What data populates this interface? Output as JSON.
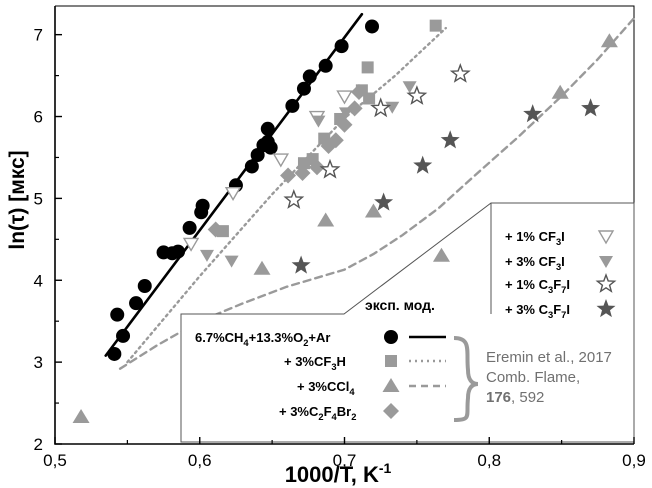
{
  "chart_data": {
    "type": "scatter",
    "title": "",
    "xlabel": "1000/T, K",
    "xlabel_sup": "-1",
    "ylabel": "ln(τ) [мкс]",
    "xlim": [
      0.5,
      0.9
    ],
    "ylim": [
      2,
      7.35
    ],
    "xticks": [
      "0,5",
      "0,6",
      "0,7",
      "0,8",
      "0,9"
    ],
    "yticks": [
      "2",
      "3",
      "4",
      "5",
      "6",
      "7"
    ],
    "grid": false,
    "legend_header": "эксп.  мод.",
    "citation": {
      "line1": "Eremin et al., 2017",
      "line2": "Comb. Flame,",
      "volume": "176",
      "pages": ", 592"
    },
    "legend_main": [
      {
        "parts": [
          [
            "6.7%CH",
            ""
          ],
          [
            "4",
            "sub"
          ],
          [
            "+13.3%O",
            ""
          ],
          [
            "2",
            "sub"
          ],
          [
            "+Ar",
            ""
          ]
        ],
        "marker": "circle",
        "line": "solid"
      },
      {
        "parts": [
          [
            "+ 3%CF",
            ""
          ],
          [
            "3",
            "sub"
          ],
          [
            "H",
            ""
          ]
        ],
        "marker": "square",
        "line": "dotted"
      },
      {
        "parts": [
          [
            "+ 3%CCl",
            ""
          ],
          [
            "4",
            "sub"
          ]
        ],
        "marker": "triangle",
        "line": "dashed"
      },
      {
        "parts": [
          [
            "+ 3%C",
            ""
          ],
          [
            "2",
            "sub"
          ],
          [
            "F",
            ""
          ],
          [
            "4",
            "sub"
          ],
          [
            "Br",
            ""
          ],
          [
            "2",
            "sub"
          ]
        ],
        "marker": "diamond",
        "line": "none"
      }
    ],
    "legend_extra": [
      {
        "parts": [
          [
            "+ 1% CF",
            ""
          ],
          [
            "3",
            "sub"
          ],
          [
            "I",
            ""
          ]
        ],
        "marker": "triangle-down-open"
      },
      {
        "parts": [
          [
            "+ 3% CF",
            ""
          ],
          [
            "3",
            "sub"
          ],
          [
            "I",
            ""
          ]
        ],
        "marker": "triangle-down"
      },
      {
        "parts": [
          [
            "+ 1% C",
            ""
          ],
          [
            "3",
            "sub"
          ],
          [
            "F",
            ""
          ],
          [
            "7",
            "sub"
          ],
          [
            "I",
            ""
          ]
        ],
        "marker": "star-open"
      },
      {
        "parts": [
          [
            "+ 3% C",
            ""
          ],
          [
            "3",
            "sub"
          ],
          [
            "F",
            ""
          ],
          [
            "7",
            "sub"
          ],
          [
            "I",
            ""
          ]
        ],
        "marker": "star"
      }
    ],
    "series": [
      {
        "name": "6.7%CH4+13.3%O2+Ar",
        "marker": "circle",
        "color": "#000000",
        "points": [
          [
            0.541,
            3.1
          ],
          [
            0.543,
            3.58
          ],
          [
            0.547,
            3.32
          ],
          [
            0.556,
            3.72
          ],
          [
            0.562,
            3.93
          ],
          [
            0.575,
            4.34
          ],
          [
            0.581,
            4.33
          ],
          [
            0.585,
            4.35
          ],
          [
            0.593,
            4.64
          ],
          [
            0.601,
            4.83
          ],
          [
            0.602,
            4.91
          ],
          [
            0.625,
            5.16
          ],
          [
            0.636,
            5.39
          ],
          [
            0.64,
            5.53
          ],
          [
            0.644,
            5.65
          ],
          [
            0.647,
            5.69
          ],
          [
            0.647,
            5.85
          ],
          [
            0.649,
            5.62
          ],
          [
            0.664,
            6.13
          ],
          [
            0.672,
            6.34
          ],
          [
            0.676,
            6.49
          ],
          [
            0.687,
            6.62
          ],
          [
            0.698,
            6.86
          ],
          [
            0.719,
            7.1
          ]
        ]
      },
      {
        "name": "+ 3%CF3H",
        "marker": "square",
        "color": "#9a9a9a",
        "points": [
          [
            0.616,
            4.6
          ],
          [
            0.672,
            5.43
          ],
          [
            0.678,
            5.48
          ],
          [
            0.686,
            5.73
          ],
          [
            0.697,
            5.97
          ],
          [
            0.712,
            6.32
          ],
          [
            0.716,
            6.6
          ],
          [
            0.717,
            6.22
          ],
          [
            0.763,
            7.11
          ]
        ]
      },
      {
        "name": "+ 3%CCl4",
        "marker": "triangle",
        "color": "#9a9a9a",
        "points": [
          [
            0.518,
            2.33
          ],
          [
            0.643,
            4.14
          ],
          [
            0.687,
            4.73
          ],
          [
            0.72,
            4.84
          ],
          [
            0.767,
            4.3
          ],
          [
            0.849,
            6.29
          ],
          [
            0.883,
            6.92
          ]
        ]
      },
      {
        "name": "+ 3%C2F4Br2",
        "marker": "diamond",
        "color": "#9a9a9a",
        "points": [
          [
            0.611,
            4.62
          ],
          [
            0.661,
            5.28
          ],
          [
            0.671,
            5.31
          ],
          [
            0.681,
            5.38
          ],
          [
            0.689,
            5.64
          ],
          [
            0.694,
            5.71
          ],
          [
            0.7,
            5.9
          ],
          [
            0.707,
            6.1
          ],
          [
            0.71,
            6.3
          ]
        ]
      },
      {
        "name": "+ 1% CF3I",
        "marker": "triangle-down-open",
        "color": "#9a9a9a",
        "points": [
          [
            0.594,
            4.45
          ],
          [
            0.623,
            5.07
          ],
          [
            0.656,
            5.48
          ],
          [
            0.681,
            6.0
          ],
          [
            0.7,
            6.25
          ]
        ]
      },
      {
        "name": "+ 3% CF3I",
        "marker": "triangle-down",
        "color": "#9a9a9a",
        "points": [
          [
            0.605,
            4.31
          ],
          [
            0.622,
            4.24
          ],
          [
            0.682,
            5.95
          ],
          [
            0.701,
            6.05
          ],
          [
            0.733,
            6.12
          ],
          [
            0.745,
            6.37
          ]
        ]
      },
      {
        "name": "+ 1% C3F7I",
        "marker": "star-open",
        "color": "#555555",
        "points": [
          [
            0.665,
            4.98
          ],
          [
            0.69,
            5.35
          ],
          [
            0.725,
            6.1
          ],
          [
            0.75,
            6.25
          ],
          [
            0.78,
            6.52
          ]
        ]
      },
      {
        "name": "+ 3% C3F7I",
        "marker": "star",
        "color": "#555555",
        "points": [
          [
            0.67,
            4.18
          ],
          [
            0.727,
            4.95
          ],
          [
            0.754,
            5.4
          ],
          [
            0.773,
            5.71
          ],
          [
            0.83,
            6.03
          ],
          [
            0.87,
            6.1
          ]
        ]
      }
    ],
    "models": [
      {
        "for": "6.7%CH4+13.3%O2+Ar",
        "style": "solid",
        "color": "#000000",
        "points": [
          [
            0.535,
            3.08
          ],
          [
            0.712,
            7.25
          ]
        ]
      },
      {
        "for": "+ 3%CF3H",
        "style": "dotted",
        "color": "#9a9a9a",
        "points": [
          [
            0.55,
            3.0
          ],
          [
            0.6,
            4.05
          ],
          [
            0.65,
            5.05
          ],
          [
            0.7,
            5.98
          ],
          [
            0.735,
            6.5
          ],
          [
            0.77,
            7.08
          ]
        ]
      },
      {
        "for": "+ 3%CCl4",
        "style": "dashed",
        "color": "#9a9a9a",
        "points": [
          [
            0.545,
            2.92
          ],
          [
            0.57,
            3.2
          ],
          [
            0.6,
            3.5
          ],
          [
            0.63,
            3.72
          ],
          [
            0.66,
            3.92
          ],
          [
            0.7,
            4.13
          ],
          [
            0.72,
            4.32
          ],
          [
            0.74,
            4.55
          ],
          [
            0.765,
            4.88
          ],
          [
            0.79,
            5.28
          ],
          [
            0.82,
            5.75
          ],
          [
            0.85,
            6.25
          ],
          [
            0.875,
            6.7
          ],
          [
            0.9,
            7.2
          ]
        ]
      }
    ]
  }
}
